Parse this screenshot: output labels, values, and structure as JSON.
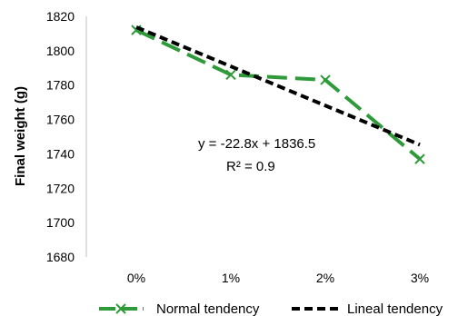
{
  "chart_data": {
    "type": "line",
    "categories": [
      "0%",
      "1%",
      "2%",
      "3%"
    ],
    "x": [
      0,
      1,
      2,
      3
    ],
    "ylabel": "Final weight  (g)",
    "ylim": [
      1680,
      1820
    ],
    "yticks": [
      1680,
      1700,
      1720,
      1740,
      1760,
      1780,
      1800,
      1820
    ],
    "grid": false,
    "legend": "bottom",
    "series": [
      {
        "name": "Normal tendency",
        "values": [
          1812,
          1786,
          1783,
          1737
        ],
        "color": "#2e9a3a",
        "style": "dashed-marker-x"
      },
      {
        "name": "Lineal tendency",
        "values": [
          1813.7,
          1790.9,
          1768.1,
          1745.3
        ],
        "color": "#000000",
        "style": "dashed"
      }
    ],
    "annotations": {
      "equation": "y = -22.8x + 1836.5",
      "r_squared": "R² = 0.9"
    }
  }
}
